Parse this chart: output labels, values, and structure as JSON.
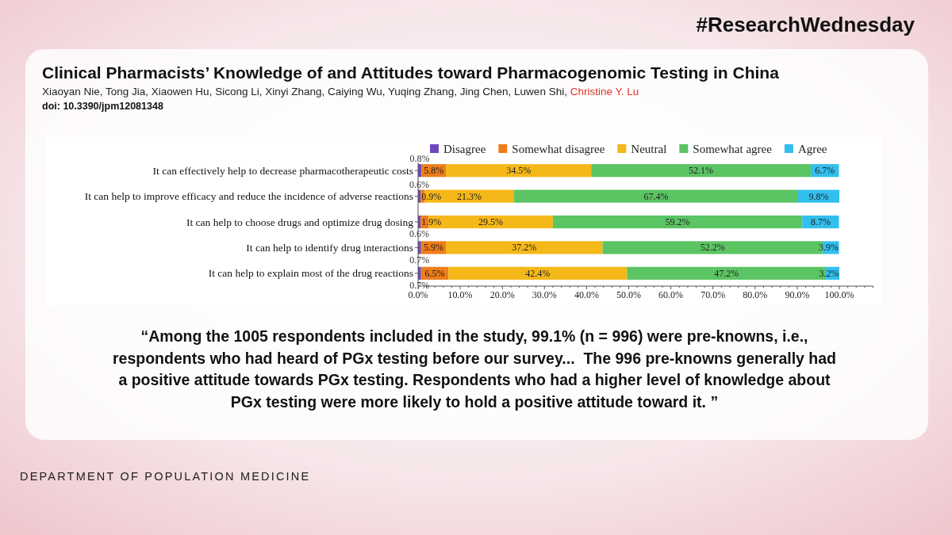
{
  "chart_data": {
    "type": "bar",
    "orientation": "horizontal",
    "stacked": true,
    "title": "Clinical Pharmacists’ Knowledge of and Attitudes toward Pharmacogenomic Testing in China",
    "subtitle": "Xiaoyan Nie, Tong Jia, Xiaowen Hu, Sicong Li, Xinyi Zhang, Caiying Wu, Yuqing Zhang, Jing Chen, Luwen Shi, Christine Y. Lu",
    "annotations": [
      "doi: 10.3390/jpm12081348",
      "#ResearchWednesday",
      "“Among the 1005 respondents included in the study, 99.1% (n = 996) were pre-knowns, i.e., respondents who had heard of PGx testing before our survey...  The 996 pre-knowns generally had a positive attitude towards PGx testing. Respondents who had a higher level of knowledge about PGx testing were more likely to hold a positive attitude toward it. ”",
      "DEPARTMENT OF POPULATION MEDICINE"
    ],
    "categories": [
      "It can effectively help to decrease pharmacotherapeutic costs",
      "It can help to improve efficacy and reduce the incidence of adverse reactions",
      "It can help to choose drugs and optimize drug dosing",
      "It can help to identify drug interactions",
      "It can help to explain most of the drug reactions"
    ],
    "series": [
      {
        "name": "Disagree",
        "color": "#6e47bf",
        "values": [
          0.8,
          0.6,
          0.6,
          0.7,
          0.7
        ],
        "value_labels": [
          "0.8%",
          "0.6%",
          "0.6%",
          "0.7%",
          "0.7%"
        ]
      },
      {
        "name": "Somewhat disagree",
        "color": "#ee7d1a",
        "values": [
          5.8,
          0.9,
          1.9,
          5.9,
          6.5
        ],
        "value_labels": [
          "5.8%",
          "0.9%",
          "1.9%",
          "5.9%",
          "6.5%"
        ]
      },
      {
        "name": "Neutral",
        "color": "#f5b819",
        "values": [
          34.5,
          21.3,
          29.5,
          37.2,
          42.4
        ],
        "value_labels": [
          "34.5%",
          "21.3%",
          "29.5%",
          "37.2%",
          "42.4%"
        ]
      },
      {
        "name": "Somewhat agree",
        "color": "#5bc463",
        "values": [
          52.1,
          67.4,
          59.2,
          52.2,
          47.2
        ],
        "value_labels": [
          "52.1%",
          "67.4%",
          "59.2%",
          "52.2%",
          "47.2%"
        ]
      },
      {
        "name": "Agree",
        "color": "#33bfee",
        "values": [
          6.7,
          9.8,
          8.7,
          3.9,
          3.2
        ],
        "value_labels": [
          "6.7%",
          "9.8%",
          "8.7%",
          "3.9%",
          "3.2%"
        ]
      }
    ],
    "xlim": [
      0,
      108
    ],
    "xticks": [
      {
        "value": 0,
        "label": "0.0%"
      },
      {
        "value": 2,
        "label": null
      },
      {
        "value": 4,
        "label": null
      },
      {
        "value": 6,
        "label": null
      },
      {
        "value": 8,
        "label": null
      },
      {
        "value": 10,
        "label": "10.0%"
      },
      {
        "value": 12,
        "label": null
      },
      {
        "value": 14,
        "label": null
      },
      {
        "value": 16,
        "label": null
      },
      {
        "value": 18,
        "label": null
      },
      {
        "value": 20,
        "label": "20.0%"
      },
      {
        "value": 22,
        "label": null
      },
      {
        "value": 24,
        "label": null
      },
      {
        "value": 26,
        "label": null
      },
      {
        "value": 28,
        "label": null
      },
      {
        "value": 30,
        "label": "30.0%"
      },
      {
        "value": 32,
        "label": null
      },
      {
        "value": 34,
        "label": null
      },
      {
        "value": 36,
        "label": null
      },
      {
        "value": 38,
        "label": null
      },
      {
        "value": 40,
        "label": "40.0%"
      },
      {
        "value": 42,
        "label": null
      },
      {
        "value": 44,
        "label": null
      },
      {
        "value": 46,
        "label": null
      },
      {
        "value": 48,
        "label": null
      },
      {
        "value": 50,
        "label": "50.0%"
      },
      {
        "value": 52,
        "label": null
      },
      {
        "value": 54,
        "label": null
      },
      {
        "value": 56,
        "label": null
      },
      {
        "value": 58,
        "label": null
      },
      {
        "value": 60,
        "label": "60.0%"
      },
      {
        "value": 62,
        "label": null
      },
      {
        "value": 64,
        "label": null
      },
      {
        "value": 66,
        "label": null
      },
      {
        "value": 68,
        "label": null
      },
      {
        "value": 70,
        "label": "70.0%"
      },
      {
        "value": 72,
        "label": null
      },
      {
        "value": 74,
        "label": null
      },
      {
        "value": 76,
        "label": null
      },
      {
        "value": 78,
        "label": null
      },
      {
        "value": 80,
        "label": "80.0%"
      },
      {
        "value": 82,
        "label": null
      },
      {
        "value": 84,
        "label": null
      },
      {
        "value": 86,
        "label": null
      },
      {
        "value": 88,
        "label": null
      },
      {
        "value": 90,
        "label": "90.0%"
      },
      {
        "value": 92,
        "label": null
      },
      {
        "value": 94,
        "label": null
      },
      {
        "value": 96,
        "label": null
      },
      {
        "value": 98,
        "label": null
      },
      {
        "value": 100,
        "label": "100.0%"
      },
      {
        "value": 102,
        "label": null
      },
      {
        "value": 104,
        "label": null
      },
      {
        "value": 106,
        "label": null
      },
      {
        "value": 108,
        "label": null
      }
    ],
    "legend": "top"
  }
}
